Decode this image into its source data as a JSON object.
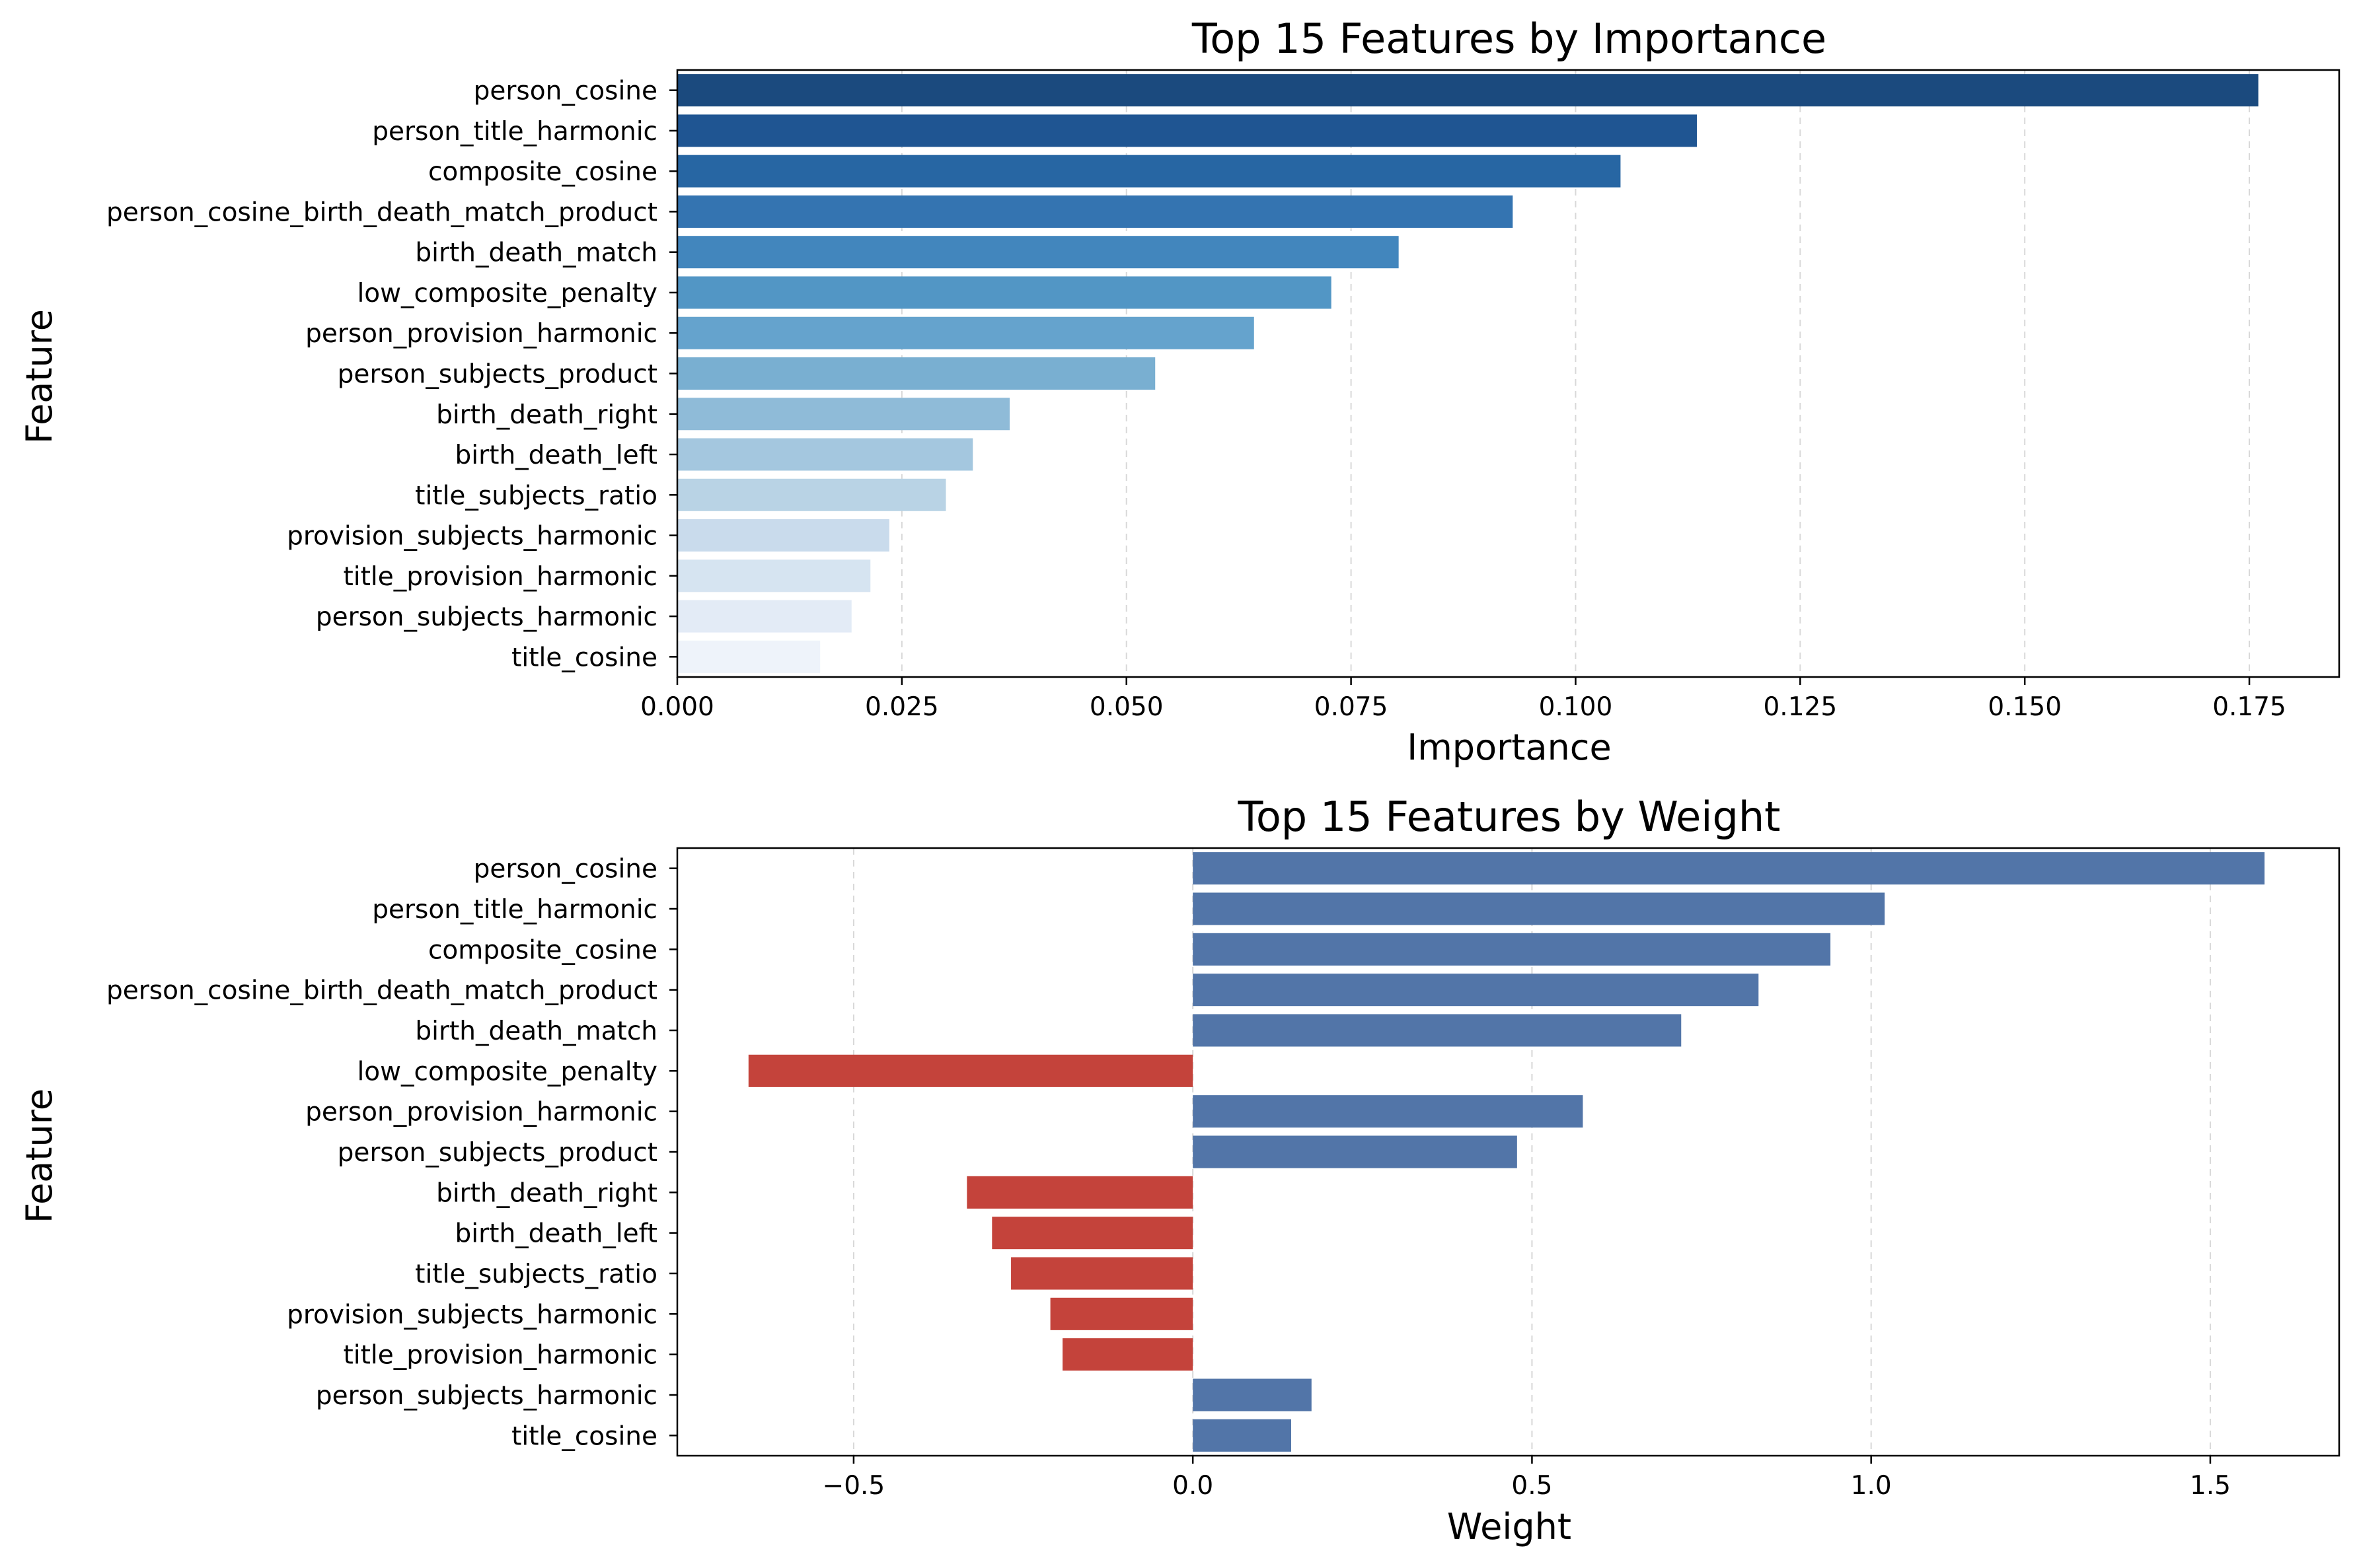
{
  "chart_data": [
    {
      "type": "bar",
      "orientation": "horizontal",
      "title": "Top 15 Features by Importance",
      "xlabel": "Importance",
      "ylabel": "Feature",
      "xlim": [
        0,
        0.185
      ],
      "xticks": [
        0.0,
        0.025,
        0.05,
        0.075,
        0.1,
        0.125,
        0.15,
        0.175
      ],
      "xtick_labels": [
        "0.000",
        "0.025",
        "0.050",
        "0.075",
        "0.100",
        "0.125",
        "0.150",
        "0.175"
      ],
      "grid": "vertical dashed",
      "categories": [
        "person_cosine",
        "person_title_harmonic",
        "composite_cosine",
        "person_cosine_birth_death_match_product",
        "birth_death_match",
        "low_composite_penalty",
        "person_provision_harmonic",
        "person_subjects_product",
        "birth_death_right",
        "birth_death_left",
        "title_subjects_ratio",
        "provision_subjects_harmonic",
        "title_provision_harmonic",
        "person_subjects_harmonic",
        "title_cosine"
      ],
      "values": [
        0.176,
        0.1135,
        0.105,
        0.093,
        0.0803,
        0.0728,
        0.0642,
        0.0532,
        0.037,
        0.0329,
        0.0299,
        0.0236,
        0.0215,
        0.0194,
        0.0159
      ],
      "colors": [
        "#1b4a7e",
        "#1f5592",
        "#2766a3",
        "#3474b1",
        "#4286bd",
        "#5296c5",
        "#65a3cd",
        "#79afd1",
        "#8fbbd8",
        "#a4c7df",
        "#b9d3e5",
        "#c9dbec",
        "#d6e4f1",
        "#e3ebf6",
        "#eef3fa"
      ]
    },
    {
      "type": "bar",
      "orientation": "horizontal",
      "title": "Top 15 Features by Weight",
      "xlabel": "Weight",
      "ylabel": "Feature",
      "xlim": [
        -0.76,
        1.69
      ],
      "xticks": [
        -0.5,
        0.0,
        0.5,
        1.0,
        1.5
      ],
      "xtick_labels": [
        "−0.5",
        "0.0",
        "0.5",
        "1.0",
        "1.5"
      ],
      "grid": "vertical dashed",
      "categories": [
        "person_cosine",
        "person_title_harmonic",
        "composite_cosine",
        "person_cosine_birth_death_match_product",
        "birth_death_match",
        "low_composite_penalty",
        "person_provision_harmonic",
        "person_subjects_product",
        "birth_death_right",
        "birth_death_left",
        "title_subjects_ratio",
        "provision_subjects_harmonic",
        "title_provision_harmonic",
        "person_subjects_harmonic",
        "title_cosine"
      ],
      "values": [
        1.58,
        1.02,
        0.94,
        0.834,
        0.72,
        -0.655,
        0.575,
        0.478,
        -0.333,
        -0.296,
        -0.268,
        -0.21,
        -0.192,
        0.175,
        0.145
      ],
      "positive_color": "#5275a8",
      "negative_color": "#c4433b"
    }
  ]
}
